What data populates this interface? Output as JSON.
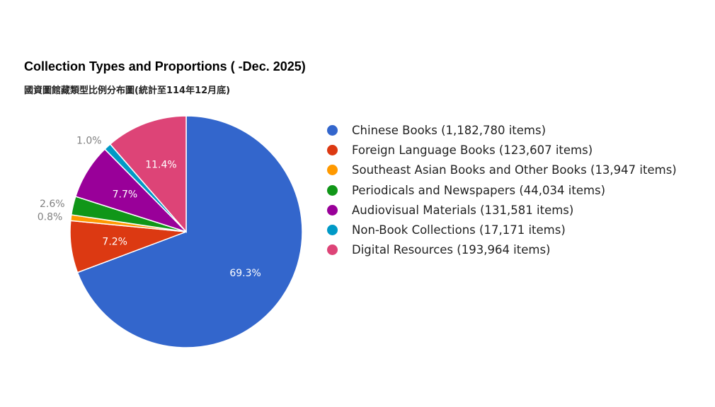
{
  "chart_data": {
    "type": "pie",
    "title": "Collection Types and Proportions ( -Dec. 2025)",
    "subtitle": "國資圖館藏類型比例分布圖(統計至114年12月底)",
    "legend_position": "right",
    "series": [
      {
        "name": "Chinese Books (1,182,780 items)",
        "value": 1182780,
        "percent_label": "69.3%",
        "color": "#3366cc",
        "label_outside": false
      },
      {
        "name": "Foreign Language Books (123,607 items)",
        "value": 123607,
        "percent_label": "7.2%",
        "color": "#dc3912",
        "label_outside": false
      },
      {
        "name": "Southeast Asian Books and Other Books (13,947 items)",
        "value": 13947,
        "percent_label": "0.8%",
        "color": "#ff9900",
        "label_outside": true
      },
      {
        "name": "Periodicals and Newspapers (44,034 items)",
        "value": 44034,
        "percent_label": "2.6%",
        "color": "#109618",
        "label_outside": true
      },
      {
        "name": "Audiovisual Materials (131,581 items)",
        "value": 131581,
        "percent_label": "7.7%",
        "color": "#990099",
        "label_outside": false
      },
      {
        "name": "Non-Book Collections (17,171 items)",
        "value": 17171,
        "percent_label": "1.0%",
        "color": "#0099c6",
        "label_outside": true
      },
      {
        "name": "Digital Resources (193,964 items)",
        "value": 193964,
        "percent_label": "11.4%",
        "color": "#dd4477",
        "label_outside": false
      }
    ]
  }
}
